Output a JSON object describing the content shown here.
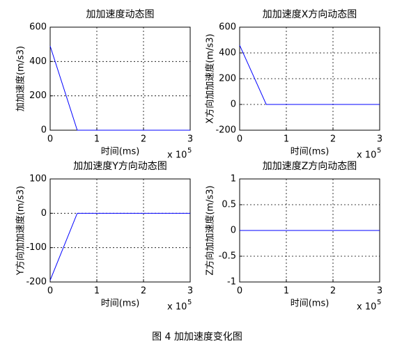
{
  "chart_data": [
    {
      "type": "line",
      "title": "加加速度动态图",
      "xlabel": "时间(ms)",
      "ylabel": "加加速度(m/s3)",
      "x_multiplier": "x 10",
      "x_exponent": "5",
      "x": [
        0,
        0.58,
        3
      ],
      "values": [
        490,
        0,
        0
      ],
      "color": "#0000ff",
      "xlim": [
        0,
        3
      ],
      "xticks": [
        0,
        1,
        2,
        3
      ],
      "ylim": [
        0,
        600
      ],
      "yticks": [
        0,
        200,
        400,
        600
      ],
      "grid": true
    },
    {
      "type": "line",
      "title": "加加速度X方向动态图",
      "xlabel": "时间(ms)",
      "ylabel": "X方向加加速度(m/s3)",
      "x_multiplier": "x 10",
      "x_exponent": "5",
      "x": [
        0,
        0.57,
        3
      ],
      "values": [
        460,
        0,
        0
      ],
      "color": "#0000ff",
      "xlim": [
        0,
        3
      ],
      "xticks": [
        0,
        1,
        2,
        3
      ],
      "ylim": [
        -200,
        600
      ],
      "yticks": [
        -200,
        0,
        200,
        400,
        600
      ],
      "grid": true
    },
    {
      "type": "line",
      "title": "加加速度Y方向动态图",
      "xlabel": "时间(ms)",
      "ylabel": "Y方向加加速度(m/s3)",
      "x_multiplier": "x 10",
      "x_exponent": "5",
      "x": [
        0,
        0.58,
        3
      ],
      "values": [
        -195,
        0,
        0
      ],
      "color": "#0000ff",
      "xlim": [
        0,
        3
      ],
      "xticks": [
        0,
        1,
        2,
        3
      ],
      "ylim": [
        -200,
        100
      ],
      "yticks": [
        -200,
        -100,
        0,
        100
      ],
      "grid": true
    },
    {
      "type": "line",
      "title": "加加速度Z方向动态图",
      "xlabel": "时间(ms)",
      "ylabel": "Z方向加加速度(m/s3)",
      "x_multiplier": "x 10",
      "x_exponent": "5",
      "x": [
        0,
        3
      ],
      "values": [
        0,
        0
      ],
      "color": "#0000ff",
      "xlim": [
        0,
        3
      ],
      "xticks": [
        0,
        1,
        2,
        3
      ],
      "ylim": [
        -1,
        1
      ],
      "yticks": [
        -1,
        -0.5,
        0,
        0.5,
        1
      ],
      "grid": true
    }
  ],
  "caption": "图 4  加加速度变化图"
}
